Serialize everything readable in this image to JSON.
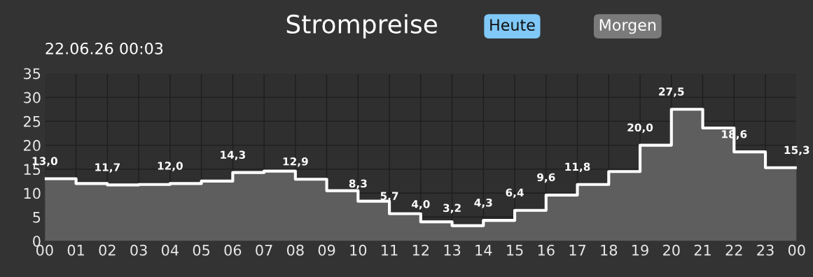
{
  "chart_data": {
    "type": "step",
    "title": "Strompreise",
    "subtitle": "22.06.26 00:03",
    "annotations": [
      "Heute",
      "Morgen"
    ],
    "x": [
      0,
      1,
      2,
      3,
      4,
      5,
      6,
      7,
      8,
      9,
      10,
      11,
      12,
      13,
      14,
      15,
      16,
      17,
      18,
      19,
      20,
      21,
      22,
      23,
      24
    ],
    "series": [
      {
        "type": "area",
        "color": "#5e5e5e",
        "values": [
          13.0,
          12.0,
          11.7,
          11.8,
          12.0,
          12.5,
          14.3,
          14.6,
          12.9,
          10.5,
          8.3,
          5.7,
          4.0,
          3.2,
          4.3,
          6.4,
          9.6,
          11.8,
          14.5,
          20.0,
          27.5,
          23.6,
          18.6,
          15.3,
          15.3
        ]
      },
      {
        "color": "#ffffff",
        "values": [
          13.0,
          12.0,
          11.7,
          11.8,
          12.0,
          12.5,
          14.3,
          14.6,
          12.9,
          10.5,
          8.3,
          5.7,
          4.0,
          3.2,
          4.3,
          6.4,
          9.6,
          11.8,
          14.5,
          20.0,
          27.5,
          23.6,
          18.6,
          15.3,
          15.3
        ],
        "value_labels": [
          "13,0",
          null,
          "11,7",
          null,
          "12,0",
          null,
          "14,3",
          null,
          "12,9",
          null,
          "8,3",
          "5,7",
          "4,0",
          "3,2",
          "4,3",
          "6,4",
          "9,6",
          "11,8",
          null,
          "20,0",
          "27,5",
          null,
          "18,6",
          null,
          "15,3"
        ]
      }
    ],
    "xlim": [
      0,
      24
    ],
    "xticks": [
      {
        "value": 0,
        "label": "00"
      },
      {
        "value": 1,
        "label": "01"
      },
      {
        "value": 2,
        "label": "02"
      },
      {
        "value": 3,
        "label": "03"
      },
      {
        "value": 4,
        "label": "04"
      },
      {
        "value": 5,
        "label": "05"
      },
      {
        "value": 6,
        "label": "06"
      },
      {
        "value": 7,
        "label": "07"
      },
      {
        "value": 8,
        "label": "08"
      },
      {
        "value": 9,
        "label": "09"
      },
      {
        "value": 10,
        "label": "10"
      },
      {
        "value": 11,
        "label": "11"
      },
      {
        "value": 12,
        "label": "12"
      },
      {
        "value": 13,
        "label": "13"
      },
      {
        "value": 14,
        "label": "14"
      },
      {
        "value": 15,
        "label": "15"
      },
      {
        "value": 16,
        "label": "16"
      },
      {
        "value": 17,
        "label": "17"
      },
      {
        "value": 18,
        "label": "18"
      },
      {
        "value": 19,
        "label": "19"
      },
      {
        "value": 20,
        "label": "20"
      },
      {
        "value": 21,
        "label": "21"
      },
      {
        "value": 22,
        "label": "22"
      },
      {
        "value": 23,
        "label": "23"
      },
      {
        "value": 24,
        "label": "00"
      }
    ],
    "ylim": [
      0,
      35
    ],
    "yticks": [
      0,
      5,
      10,
      15,
      20,
      25,
      30,
      35
    ],
    "grid": true
  }
}
